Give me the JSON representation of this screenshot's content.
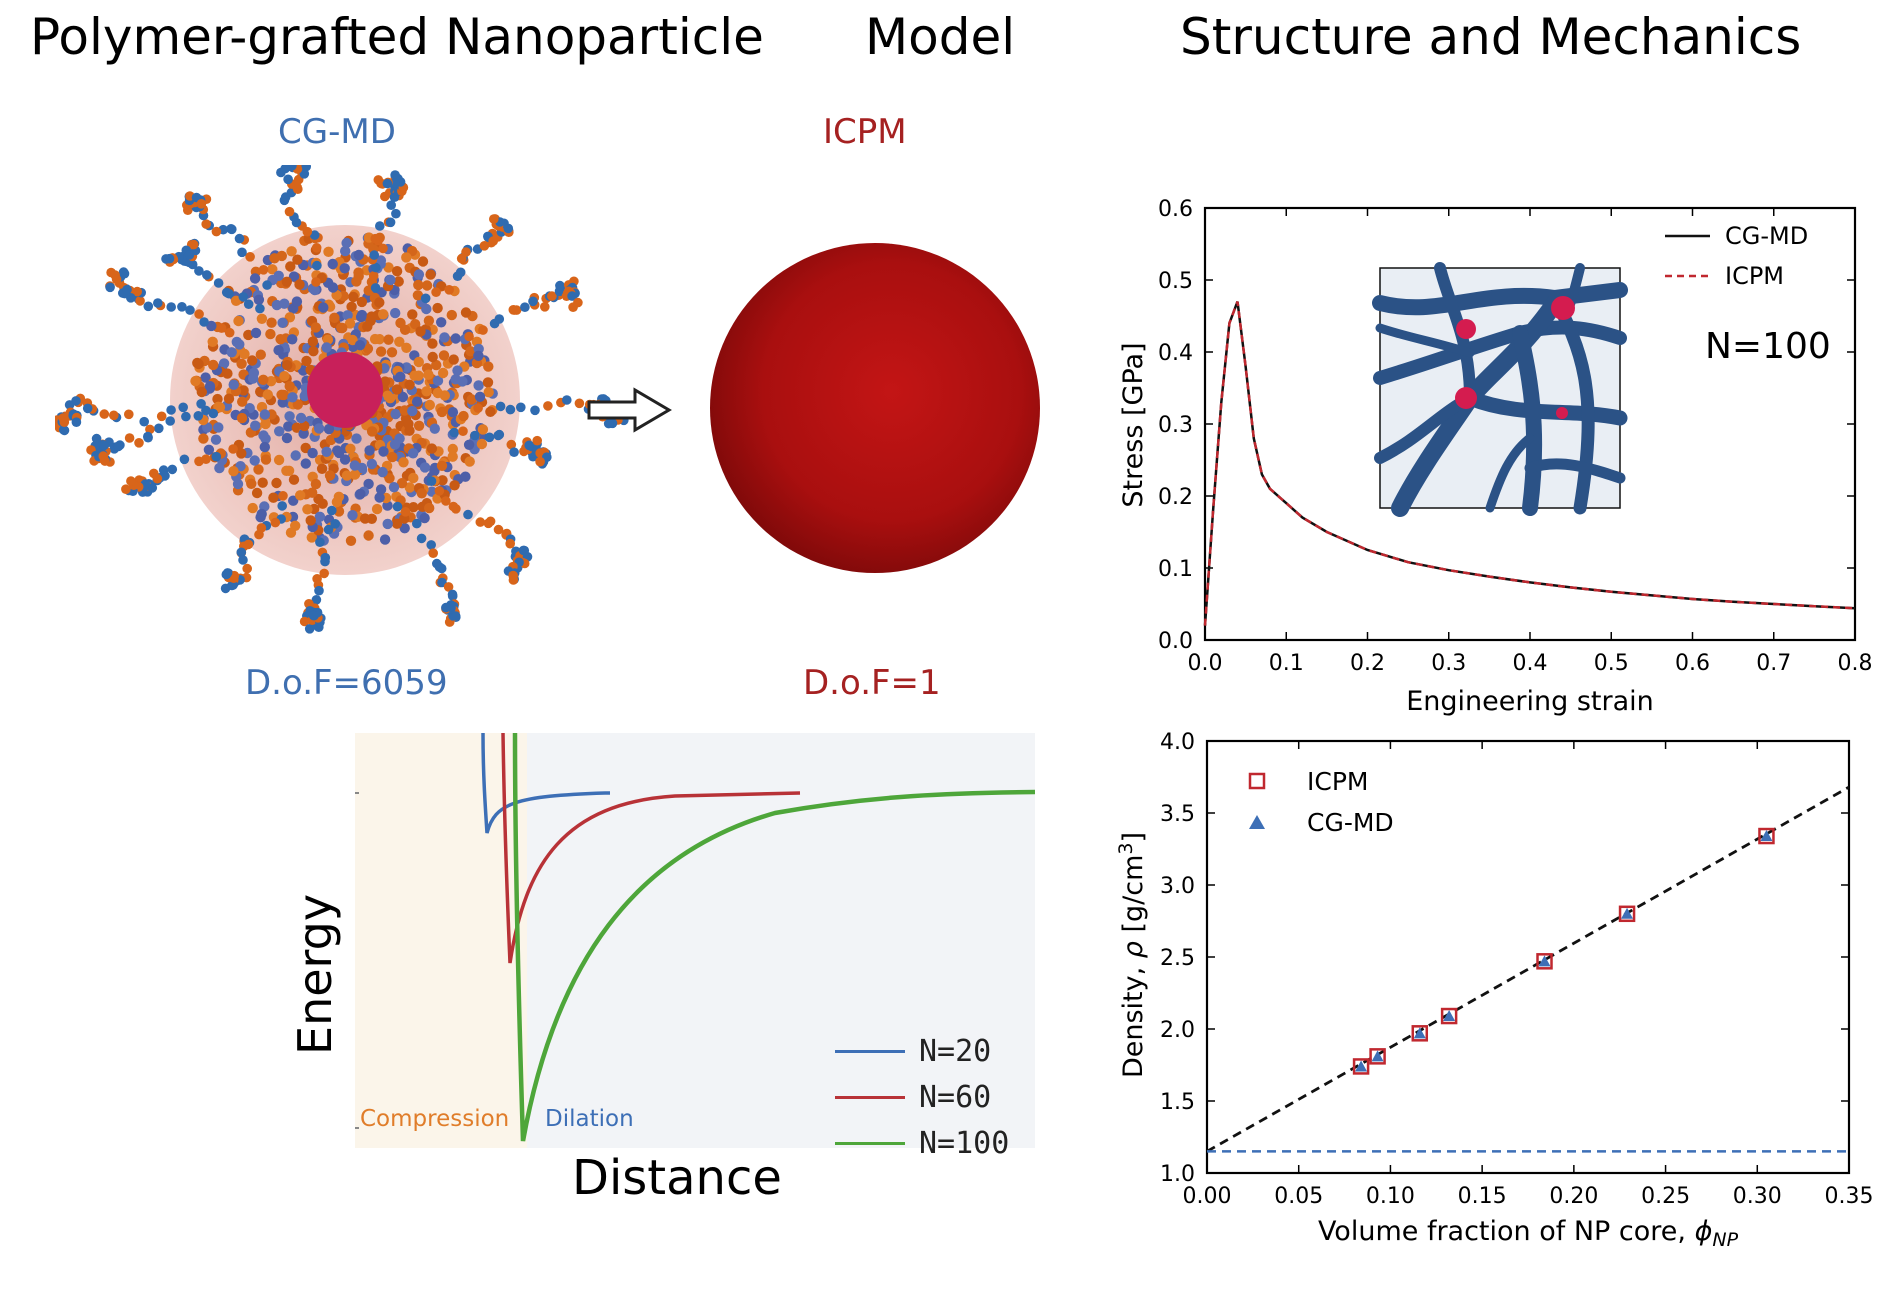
{
  "headers": {
    "left": "Polymer-grafted Nanoparticle",
    "middle": "Model",
    "right": "Structure and Mechanics"
  },
  "cgmd_panel": {
    "label": "CG-MD",
    "dof": "D.o.F=6059"
  },
  "icpm_panel": {
    "label": "ICPM",
    "dof": "D.o.F=1"
  },
  "arrow_icon": "right-arrow-icon",
  "colors": {
    "cgmd_blue": "#3f6fb0",
    "icpm_red": "#a52121",
    "n20": "#3d6fb6",
    "n60": "#b83237",
    "n100": "#4ea63a"
  },
  "energy_plot": {
    "ylabel": "Energy",
    "xlabel": "Distance",
    "region_compression": "Compression",
    "region_dilation": "Dilation",
    "legend": [
      "N=20",
      "N=60",
      "N=100"
    ]
  },
  "chart_data": [
    {
      "type": "line",
      "title": "",
      "xlabel": "Engineering strain",
      "ylabel": "Stress [GPa]",
      "xlim": [
        0.0,
        0.8
      ],
      "ylim": [
        0.0,
        0.6
      ],
      "xticks": [
        "0.0",
        "0.1",
        "0.2",
        "0.3",
        "0.4",
        "0.5",
        "0.6",
        "0.7",
        "0.8"
      ],
      "yticks": [
        "0.0",
        "0.1",
        "0.2",
        "0.3",
        "0.4",
        "0.5",
        "0.6"
      ],
      "annotation": "N=100",
      "legend": [
        "CG-MD",
        "ICPM"
      ],
      "series": [
        {
          "name": "CG-MD",
          "x": [
            0.0,
            0.01,
            0.02,
            0.03,
            0.04,
            0.05,
            0.06,
            0.07,
            0.08,
            0.1,
            0.12,
            0.15,
            0.2,
            0.25,
            0.3,
            0.35,
            0.4,
            0.45,
            0.5,
            0.55,
            0.6,
            0.65,
            0.7,
            0.75,
            0.8
          ],
          "y": [
            0.02,
            0.18,
            0.33,
            0.44,
            0.47,
            0.38,
            0.28,
            0.23,
            0.21,
            0.19,
            0.17,
            0.15,
            0.125,
            0.108,
            0.097,
            0.088,
            0.08,
            0.073,
            0.067,
            0.062,
            0.057,
            0.053,
            0.05,
            0.047,
            0.044
          ]
        },
        {
          "name": "ICPM",
          "x": [
            0.0,
            0.01,
            0.02,
            0.03,
            0.04,
            0.05,
            0.06,
            0.07,
            0.08,
            0.1,
            0.12,
            0.15,
            0.2,
            0.25,
            0.3,
            0.35,
            0.4,
            0.45,
            0.5,
            0.55,
            0.6,
            0.65,
            0.7,
            0.75,
            0.8
          ],
          "y": [
            0.02,
            0.18,
            0.33,
            0.44,
            0.47,
            0.38,
            0.28,
            0.23,
            0.21,
            0.19,
            0.17,
            0.15,
            0.125,
            0.108,
            0.097,
            0.088,
            0.08,
            0.073,
            0.067,
            0.062,
            0.057,
            0.053,
            0.05,
            0.047,
            0.044
          ]
        }
      ]
    },
    {
      "type": "scatter",
      "title": "",
      "xlabel": "Volume fraction of NP core, ",
      "xlabel_symbol": "ϕ",
      "xlabel_sub": "NP",
      "ylabel": "Density, ",
      "ylabel_symbol": "ρ",
      "ylabel_unit": " [g/cm",
      "ylabel_sup": "3",
      "ylabel_close": "]",
      "xlim": [
        0.0,
        0.35
      ],
      "ylim": [
        1.0,
        4.0
      ],
      "xticks": [
        "0.00",
        "0.05",
        "0.10",
        "0.15",
        "0.20",
        "0.25",
        "0.30",
        "0.35"
      ],
      "yticks": [
        "1.0",
        "1.5",
        "2.0",
        "2.5",
        "3.0",
        "3.5",
        "4.0"
      ],
      "legend": [
        "ICPM",
        "CG-MD"
      ],
      "fit_line": {
        "x": [
          0.0,
          0.35
        ],
        "y": [
          1.15,
          3.68
        ]
      },
      "baseline": 1.15,
      "series": [
        {
          "name": "ICPM",
          "x": [
            0.084,
            0.093,
            0.116,
            0.132,
            0.184,
            0.229,
            0.305
          ],
          "y": [
            1.74,
            1.81,
            1.97,
            2.09,
            2.47,
            2.8,
            3.34
          ]
        },
        {
          "name": "CG-MD",
          "x": [
            0.084,
            0.093,
            0.116,
            0.132,
            0.184,
            0.229,
            0.305
          ],
          "y": [
            1.74,
            1.81,
            1.97,
            2.09,
            2.47,
            2.8,
            3.34
          ]
        }
      ]
    }
  ]
}
